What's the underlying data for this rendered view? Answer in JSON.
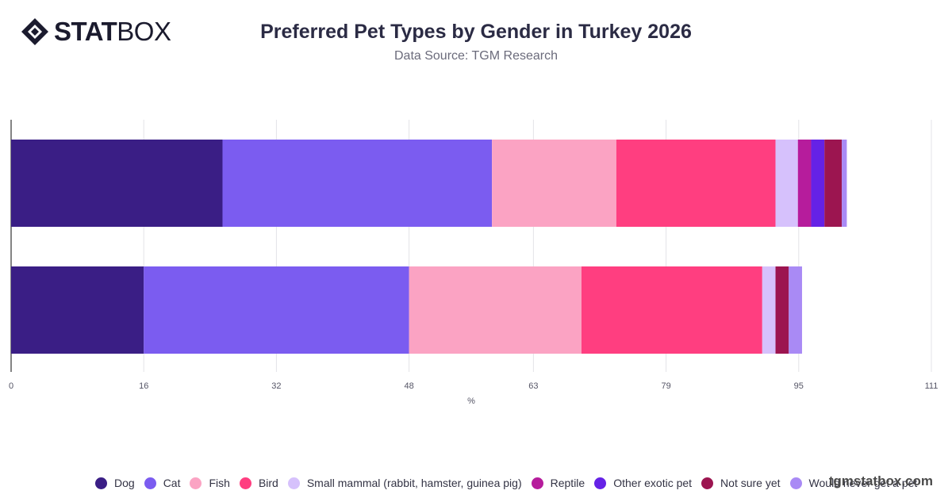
{
  "brand": {
    "logo_bold": "STAT",
    "logo_light": "BOX",
    "watermark": "tgmstatbox.com"
  },
  "chart_data": {
    "type": "bar",
    "orientation": "horizontal",
    "stacked": true,
    "title": "Preferred Pet Types by Gender in Turkey 2026",
    "subtitle": "Data Source: TGM Research",
    "xlabel": "%",
    "ylabel": "",
    "xlim": [
      0,
      111
    ],
    "x_ticks": [
      0,
      16,
      32,
      48,
      63,
      79,
      95,
      111
    ],
    "grid": true,
    "legend": "bottom",
    "categories": [
      "",
      ""
    ],
    "series": [
      {
        "name": "Dog",
        "color": "#3a1e85",
        "values": [
          25.5,
          16.0
        ]
      },
      {
        "name": "Cat",
        "color": "#7b5cf0",
        "values": [
          32.5,
          32.0
        ]
      },
      {
        "name": "Fish",
        "color": "#fba3c3",
        "values": [
          15.0,
          20.8
        ]
      },
      {
        "name": "Bird",
        "color": "#ff3e80",
        "values": [
          19.2,
          21.8
        ]
      },
      {
        "name": "Small mammal (rabbit, hamster, guinea pig)",
        "color": "#d6c1fc",
        "values": [
          2.7,
          1.6
        ]
      },
      {
        "name": "Reptile",
        "color": "#b61c9c",
        "values": [
          1.6,
          0.0
        ]
      },
      {
        "name": "Other exotic pet",
        "color": "#6522e6",
        "values": [
          1.6,
          0.0
        ]
      },
      {
        "name": "Not sure yet",
        "color": "#9c1550",
        "values": [
          2.1,
          1.6
        ]
      },
      {
        "name": "Would never get a pet",
        "color": "#a98af5",
        "values": [
          0.6,
          1.6
        ]
      }
    ]
  }
}
